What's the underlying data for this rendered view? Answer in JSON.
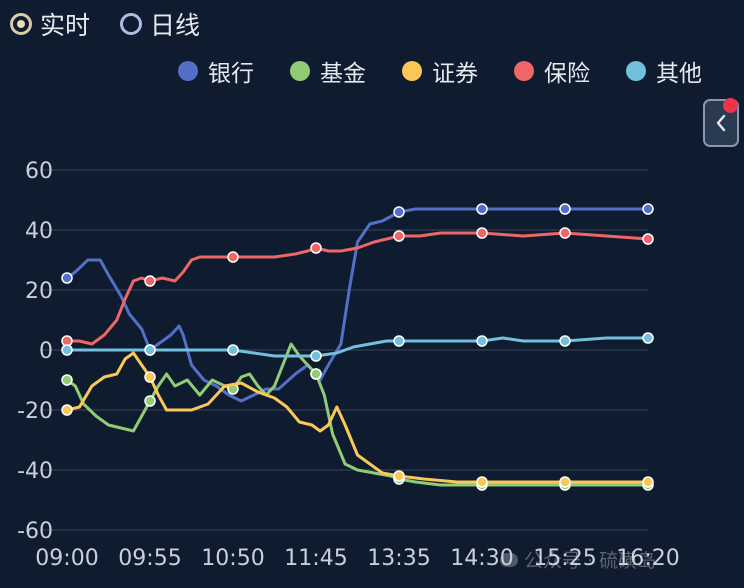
{
  "mode_switch": {
    "options": [
      {
        "label": "实时",
        "checked": true
      },
      {
        "label": "日线",
        "checked": false
      }
    ]
  },
  "legend": [
    {
      "label": "银行",
      "color": "#5470c6"
    },
    {
      "label": "基金",
      "color": "#91cc75"
    },
    {
      "label": "证券",
      "color": "#fac858"
    },
    {
      "label": "保险",
      "color": "#ee6666"
    },
    {
      "label": "其他",
      "color": "#73c0de"
    }
  ],
  "watermark": "公众号 · 硫磺岛",
  "chart_data": {
    "type": "line",
    "x_ticks": [
      "09:00",
      "09:55",
      "10:50",
      "11:45",
      "13:35",
      "14:30",
      "15:25",
      "16:20"
    ],
    "y_ticks": [
      60,
      40,
      20,
      0,
      -20,
      -40,
      -60
    ],
    "ylim": [
      -60,
      60
    ],
    "grid": true,
    "legend_position": "top-right",
    "series": [
      {
        "name": "银行",
        "color": "#5470c6",
        "points": [
          [
            0,
            24
          ],
          [
            0.1,
            26
          ],
          [
            0.25,
            30
          ],
          [
            0.4,
            30
          ],
          [
            0.5,
            25
          ],
          [
            0.65,
            18
          ],
          [
            0.75,
            12
          ],
          [
            0.9,
            7
          ],
          [
            1,
            0
          ],
          [
            1.1,
            2
          ],
          [
            1.25,
            5
          ],
          [
            1.35,
            8
          ],
          [
            1.4,
            5
          ],
          [
            1.5,
            -5
          ],
          [
            1.65,
            -10
          ],
          [
            1.8,
            -12
          ],
          [
            1.95,
            -15
          ],
          [
            2.1,
            -17
          ],
          [
            2.25,
            -15
          ],
          [
            2.4,
            -13
          ],
          [
            2.55,
            -13
          ],
          [
            2.75,
            -8
          ],
          [
            2.9,
            -5
          ],
          [
            3,
            -8
          ],
          [
            3.05,
            -10
          ],
          [
            3.15,
            -5
          ],
          [
            3.3,
            2
          ],
          [
            3.4,
            20
          ],
          [
            3.5,
            36
          ],
          [
            3.65,
            42
          ],
          [
            3.8,
            43
          ],
          [
            4,
            46
          ],
          [
            4.2,
            47
          ],
          [
            4.5,
            47
          ],
          [
            5,
            47
          ],
          [
            5.5,
            47
          ],
          [
            6,
            47
          ],
          [
            6.5,
            47
          ],
          [
            7,
            47
          ]
        ]
      },
      {
        "name": "基金",
        "color": "#91cc75",
        "points": [
          [
            0,
            -10
          ],
          [
            0.1,
            -12
          ],
          [
            0.2,
            -18
          ],
          [
            0.35,
            -22
          ],
          [
            0.5,
            -25
          ],
          [
            0.65,
            -26
          ],
          [
            0.8,
            -27
          ],
          [
            0.9,
            -22
          ],
          [
            1,
            -17
          ],
          [
            1.1,
            -12
          ],
          [
            1.2,
            -8
          ],
          [
            1.3,
            -12
          ],
          [
            1.45,
            -10
          ],
          [
            1.6,
            -15
          ],
          [
            1.75,
            -10
          ],
          [
            1.9,
            -12
          ],
          [
            2,
            -13
          ],
          [
            2.1,
            -9
          ],
          [
            2.2,
            -8
          ],
          [
            2.3,
            -12
          ],
          [
            2.4,
            -15
          ],
          [
            2.5,
            -12
          ],
          [
            2.6,
            -5
          ],
          [
            2.7,
            2
          ],
          [
            2.8,
            -2
          ],
          [
            2.9,
            -5
          ],
          [
            3,
            -8
          ],
          [
            3.1,
            -15
          ],
          [
            3.2,
            -28
          ],
          [
            3.35,
            -38
          ],
          [
            3.5,
            -40
          ],
          [
            3.7,
            -41
          ],
          [
            3.9,
            -42
          ],
          [
            4,
            -43
          ],
          [
            4.2,
            -44
          ],
          [
            4.5,
            -45
          ],
          [
            5,
            -45
          ],
          [
            5.5,
            -45
          ],
          [
            6,
            -45
          ],
          [
            6.5,
            -45
          ],
          [
            7,
            -45
          ]
        ]
      },
      {
        "name": "证券",
        "color": "#fac858",
        "points": [
          [
            0,
            -20
          ],
          [
            0.15,
            -19
          ],
          [
            0.3,
            -12
          ],
          [
            0.45,
            -9
          ],
          [
            0.6,
            -8
          ],
          [
            0.7,
            -3
          ],
          [
            0.8,
            -1
          ],
          [
            0.9,
            -5
          ],
          [
            1,
            -9
          ],
          [
            1.1,
            -15
          ],
          [
            1.2,
            -20
          ],
          [
            1.35,
            -20
          ],
          [
            1.5,
            -20
          ],
          [
            1.7,
            -18
          ],
          [
            1.9,
            -12
          ],
          [
            2.1,
            -11
          ],
          [
            2.3,
            -14
          ],
          [
            2.5,
            -16
          ],
          [
            2.65,
            -19
          ],
          [
            2.8,
            -24
          ],
          [
            2.95,
            -25
          ],
          [
            3.05,
            -27
          ],
          [
            3.15,
            -25
          ],
          [
            3.25,
            -19
          ],
          [
            3.35,
            -25
          ],
          [
            3.5,
            -35
          ],
          [
            3.65,
            -38
          ],
          [
            3.8,
            -41
          ],
          [
            4,
            -42
          ],
          [
            4.3,
            -43
          ],
          [
            4.7,
            -44
          ],
          [
            5,
            -44
          ],
          [
            5.5,
            -44
          ],
          [
            6,
            -44
          ],
          [
            6.5,
            -44
          ],
          [
            7,
            -44
          ]
        ]
      },
      {
        "name": "保险",
        "color": "#ee6666",
        "points": [
          [
            0,
            3
          ],
          [
            0.15,
            3
          ],
          [
            0.3,
            2
          ],
          [
            0.45,
            5
          ],
          [
            0.6,
            10
          ],
          [
            0.7,
            17
          ],
          [
            0.8,
            23
          ],
          [
            0.9,
            24
          ],
          [
            1,
            23
          ],
          [
            1.15,
            24
          ],
          [
            1.3,
            23
          ],
          [
            1.4,
            26
          ],
          [
            1.5,
            30
          ],
          [
            1.6,
            31
          ],
          [
            1.75,
            31
          ],
          [
            2,
            31
          ],
          [
            2.25,
            31
          ],
          [
            2.5,
            31
          ],
          [
            2.75,
            32
          ],
          [
            2.9,
            33
          ],
          [
            3,
            34
          ],
          [
            3.15,
            33
          ],
          [
            3.3,
            33
          ],
          [
            3.5,
            34
          ],
          [
            3.7,
            36
          ],
          [
            3.85,
            37
          ],
          [
            4,
            38
          ],
          [
            4.25,
            38
          ],
          [
            4.5,
            39
          ],
          [
            4.75,
            39
          ],
          [
            5,
            39
          ],
          [
            5.5,
            38
          ],
          [
            6,
            39
          ],
          [
            6.5,
            38
          ],
          [
            7,
            37
          ]
        ]
      },
      {
        "name": "其他",
        "color": "#73c0de",
        "points": [
          [
            0,
            0
          ],
          [
            0.25,
            0
          ],
          [
            0.5,
            0
          ],
          [
            1,
            0
          ],
          [
            1.5,
            0
          ],
          [
            2,
            0
          ],
          [
            2.25,
            -1
          ],
          [
            2.5,
            -2
          ],
          [
            2.75,
            -2
          ],
          [
            3,
            -2
          ],
          [
            3.25,
            -1
          ],
          [
            3.45,
            1
          ],
          [
            3.65,
            2
          ],
          [
            3.85,
            3
          ],
          [
            4,
            3
          ],
          [
            4.5,
            3
          ],
          [
            5,
            3
          ],
          [
            5.25,
            4
          ],
          [
            5.5,
            3
          ],
          [
            6,
            3
          ],
          [
            6.5,
            4
          ],
          [
            7,
            4
          ]
        ]
      }
    ]
  }
}
